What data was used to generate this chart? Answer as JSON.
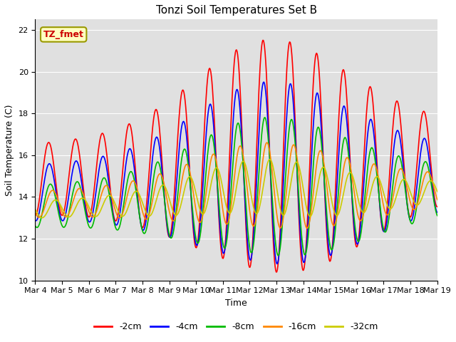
{
  "title": "Tonzi Soil Temperatures Set B",
  "xlabel": "Time",
  "ylabel": "Soil Temperature (C)",
  "annotation": "TZ_fmet",
  "ylim": [
    10,
    22.5
  ],
  "xlim": [
    0,
    15
  ],
  "xtick_labels": [
    "Mar 4",
    "Mar 5",
    "Mar 6",
    "Mar 7",
    "Mar 8",
    "Mar 9",
    "Mar 10",
    "Mar 11",
    "Mar 12",
    "Mar 13",
    "Mar 14",
    "Mar 15",
    "Mar 16",
    "Mar 17",
    "Mar 18",
    "Mar 19"
  ],
  "yticks": [
    10,
    12,
    14,
    16,
    18,
    20,
    22
  ],
  "series_colors": [
    "#ff0000",
    "#0000ff",
    "#00bb00",
    "#ff8800",
    "#cccc00"
  ],
  "series_labels": [
    "-2cm",
    "-4cm",
    "-8cm",
    "-16cm",
    "-32cm"
  ],
  "title_fontsize": 11,
  "axis_label_fontsize": 9,
  "tick_fontsize": 8,
  "legend_fontsize": 9,
  "linewidth": 1.2,
  "figwidth": 6.4,
  "figheight": 4.8,
  "dpi": 100
}
